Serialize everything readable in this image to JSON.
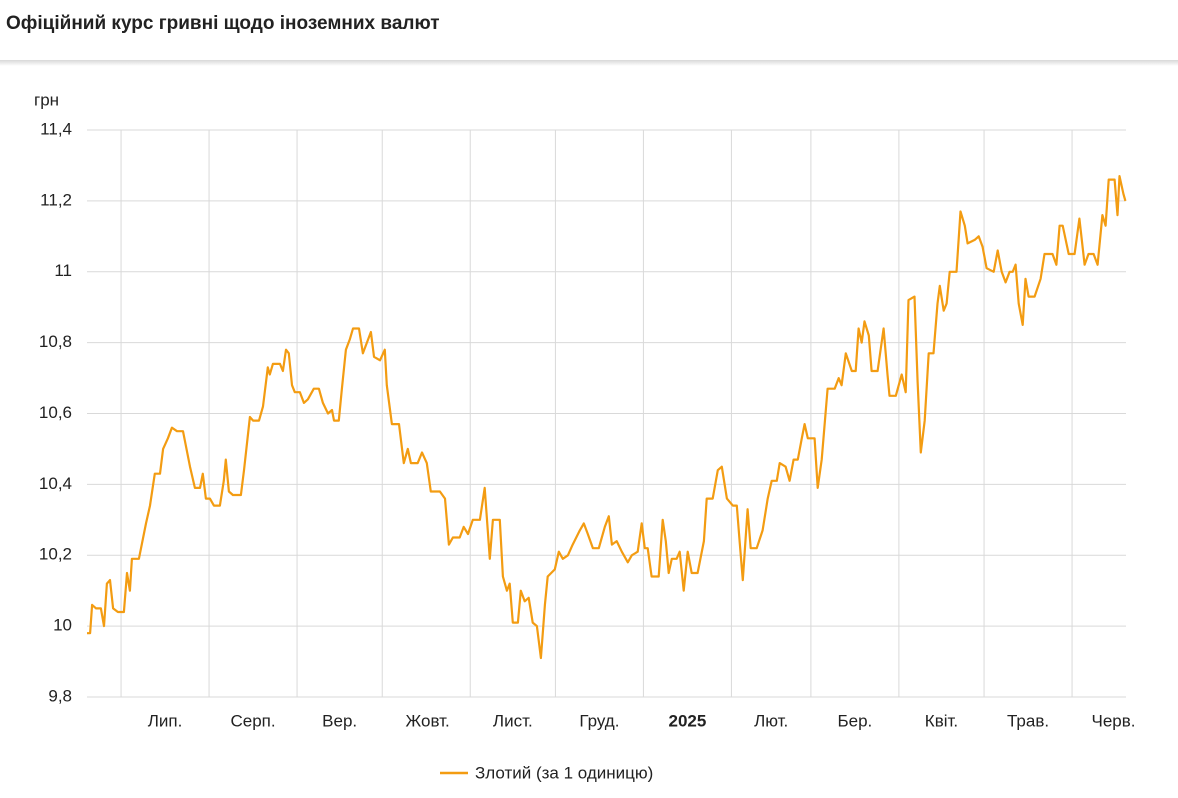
{
  "chart_data": {
    "type": "line",
    "title": "Офіційний курс гривні щодо іноземних валют",
    "y_label": "грн",
    "xlim": [
      0,
      366
    ],
    "x_grid": [
      12,
      43,
      74,
      104,
      135,
      165,
      196,
      227,
      255,
      286,
      316,
      347
    ],
    "xticks": [
      {
        "value": 27.5,
        "label": "Лип."
      },
      {
        "value": 58.5,
        "label": "Серп."
      },
      {
        "value": 89,
        "label": "Вер."
      },
      {
        "value": 120,
        "label": "Жовт."
      },
      {
        "value": 150,
        "label": "Лист."
      },
      {
        "value": 180.5,
        "label": "Груд."
      },
      {
        "value": 211.5,
        "label": "2025",
        "bold": true
      },
      {
        "value": 241,
        "label": "Лют."
      },
      {
        "value": 270.5,
        "label": "Бер."
      },
      {
        "value": 301,
        "label": "Квіт."
      },
      {
        "value": 331.5,
        "label": "Трав."
      },
      {
        "value": 361.6,
        "label": "Черв."
      }
    ],
    "ylim": [
      9.8,
      11.4
    ],
    "yticks": [
      {
        "value": 9.8,
        "label": "9,8"
      },
      10,
      {
        "value": 10.2,
        "label": "10,2"
      },
      {
        "value": 10.4,
        "label": "10,4"
      },
      {
        "value": 10.6,
        "label": "10,6"
      },
      {
        "value": 10.8,
        "label": "10,8"
      },
      11,
      {
        "value": 11.2,
        "label": "11,2"
      },
      {
        "value": 11.4,
        "label": "11,4"
      }
    ],
    "grid": true,
    "x": [
      0,
      1.1,
      1.8,
      3.2,
      4.9,
      6.0,
      7.0,
      8.1,
      9.2,
      10.9,
      13.0,
      14.1,
      15.1,
      15.8,
      18.3,
      20.8,
      22.2,
      23.9,
      25.7,
      26.8,
      28.5,
      29.9,
      31.7,
      33.8,
      36.3,
      38.0,
      39.8,
      40.8,
      41.9,
      43.3,
      44.7,
      46.8,
      48.2,
      48.9,
      50.0,
      51.4,
      54.2,
      55.3,
      57.4,
      58.5,
      60.6,
      62.0,
      63.7,
      64.4,
      65.5,
      68.0,
      69.0,
      70.1,
      71.1,
      72.2,
      73.2,
      75.0,
      76.4,
      77.8,
      79.9,
      81.7,
      83.1,
      84.9,
      86.3,
      87.0,
      88.7,
      89.8,
      91.2,
      92.6,
      93.7,
      95.8,
      97.2,
      98.6,
      100.0,
      101.1,
      103.2,
      104.9,
      105.6,
      107.4,
      109.9,
      111.6,
      113.0,
      114.1,
      116.5,
      118.0,
      119.7,
      121.1,
      124.3,
      126.1,
      127.5,
      128.9,
      131.3,
      132.7,
      134.2,
      135.9,
      138.4,
      140.1,
      141.9,
      143.0,
      145.4,
      146.5,
      147.9,
      148.9,
      150.0,
      151.8,
      152.8,
      154.2,
      155.6,
      157.0,
      158.5,
      159.9,
      161.3,
      162.3,
      164.8,
      166.2,
      167.6,
      169.4,
      171.1,
      173.6,
      175.0,
      176.4,
      178.2,
      180.3,
      182.4,
      183.8,
      184.9,
      186.6,
      188.4,
      190.5,
      191.9,
      194.0,
      195.4,
      196.5,
      197.5,
      198.9,
      201.4,
      202.8,
      203.9,
      204.9,
      206.0,
      207.7,
      208.8,
      210.2,
      211.6,
      213.0,
      215.1,
      217.3,
      218.3,
      220.4,
      222.2,
      223.6,
      225.4,
      227.5,
      228.9,
      229.9,
      231.0,
      232.7,
      233.8,
      235.9,
      238.0,
      239.8,
      241.2,
      243.0,
      244.0,
      246.1,
      247.5,
      248.9,
      250.4,
      251.8,
      252.8,
      253.9,
      256.3,
      257.4,
      258.8,
      260.9,
      263.4,
      264.8,
      265.8,
      267.3,
      269.4,
      270.8,
      271.8,
      272.9,
      273.9,
      275.4,
      276.4,
      278.5,
      280.6,
      282.0,
      282.7,
      284.9,
      287.0,
      288.4,
      289.4,
      291.5,
      292.6,
      293.7,
      295.1,
      296.5,
      298.2,
      299.6,
      300.4,
      301.8,
      302.8,
      303.9,
      306.3,
      307.7,
      309.2,
      310.2,
      312.7,
      314.1,
      315.5,
      316.9,
      319.4,
      320.8,
      322.2,
      323.6,
      325.0,
      326.1,
      327.1,
      328.2,
      329.6,
      330.6,
      331.7,
      333.8,
      335.9,
      337.3,
      340.1,
      341.5,
      342.6,
      343.7,
      345.8,
      347.9,
      349.6,
      351.4,
      352.8,
      354.6,
      356.0,
      357.7,
      358.8,
      359.9,
      362.0,
      363.0,
      363.7,
      365.1,
      365.8
    ],
    "series": [
      {
        "name": "Злотий (за 1 одиницю)",
        "color": "#f39c12",
        "values": [
          9.98,
          9.98,
          10.06,
          10.05,
          10.05,
          10.0,
          10.12,
          10.13,
          10.05,
          10.04,
          10.04,
          10.15,
          10.1,
          10.19,
          10.19,
          10.29,
          10.34,
          10.43,
          10.43,
          10.5,
          10.53,
          10.56,
          10.55,
          10.55,
          10.45,
          10.39,
          10.39,
          10.43,
          10.36,
          10.36,
          10.34,
          10.34,
          10.41,
          10.47,
          10.38,
          10.37,
          10.37,
          10.44,
          10.59,
          10.58,
          10.58,
          10.62,
          10.73,
          10.71,
          10.74,
          10.74,
          10.72,
          10.78,
          10.77,
          10.68,
          10.66,
          10.66,
          10.63,
          10.64,
          10.67,
          10.67,
          10.63,
          10.6,
          10.61,
          10.58,
          10.58,
          10.67,
          10.78,
          10.81,
          10.84,
          10.84,
          10.77,
          10.8,
          10.83,
          10.76,
          10.75,
          10.78,
          10.68,
          10.57,
          10.57,
          10.46,
          10.5,
          10.46,
          10.46,
          10.49,
          10.46,
          10.38,
          10.38,
          10.36,
          10.23,
          10.25,
          10.25,
          10.28,
          10.26,
          10.3,
          10.3,
          10.39,
          10.19,
          10.3,
          10.3,
          10.14,
          10.1,
          10.12,
          10.01,
          10.01,
          10.1,
          10.07,
          10.08,
          10.01,
          10.0,
          9.91,
          10.06,
          10.14,
          10.16,
          10.21,
          10.19,
          10.2,
          10.23,
          10.27,
          10.29,
          10.26,
          10.22,
          10.22,
          10.28,
          10.31,
          10.23,
          10.24,
          10.21,
          10.18,
          10.2,
          10.21,
          10.29,
          10.22,
          10.22,
          10.14,
          10.14,
          10.3,
          10.24,
          10.15,
          10.19,
          10.19,
          10.21,
          10.1,
          10.21,
          10.15,
          10.15,
          10.24,
          10.36,
          10.36,
          10.44,
          10.45,
          10.36,
          10.34,
          10.34,
          10.24,
          10.13,
          10.33,
          10.22,
          10.22,
          10.27,
          10.36,
          10.41,
          10.41,
          10.46,
          10.45,
          10.41,
          10.47,
          10.47,
          10.53,
          10.57,
          10.53,
          10.53,
          10.39,
          10.47,
          10.67,
          10.67,
          10.7,
          10.68,
          10.77,
          10.72,
          10.72,
          10.84,
          10.8,
          10.86,
          10.82,
          10.72,
          10.72,
          10.84,
          10.71,
          10.65,
          10.65,
          10.71,
          10.66,
          10.92,
          10.93,
          10.69,
          10.49,
          10.58,
          10.77,
          10.77,
          10.91,
          10.96,
          10.89,
          10.91,
          11.0,
          11.0,
          11.17,
          11.13,
          11.08,
          11.09,
          11.1,
          11.07,
          11.01,
          11.0,
          11.06,
          11.0,
          10.97,
          11.0,
          11.0,
          11.02,
          10.91,
          10.85,
          10.98,
          10.93,
          10.93,
          10.98,
          11.05,
          11.05,
          11.02,
          11.13,
          11.13,
          11.05,
          11.05,
          11.15,
          11.02,
          11.05,
          11.05,
          11.02,
          11.16,
          11.13,
          11.26,
          11.26,
          11.16,
          11.27,
          11.22,
          11.2
        ]
      }
    ]
  }
}
